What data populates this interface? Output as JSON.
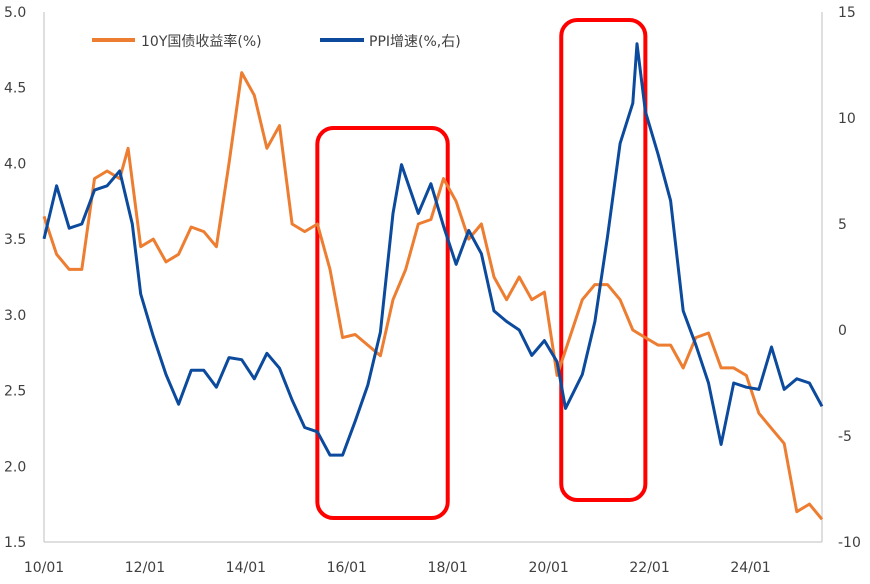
{
  "chart_data": {
    "type": "line",
    "title": "",
    "x_tick_labels": [
      "10/01",
      "12/01",
      "14/01",
      "16/01",
      "18/01",
      "20/01",
      "22/01",
      "24/01"
    ],
    "x_ticks": [
      "2010-01",
      "2012-01",
      "2014-01",
      "2016-01",
      "2018-01",
      "2020-01",
      "2022-01",
      "2024-01"
    ],
    "x_range": [
      "2010-01",
      "2025-06"
    ],
    "y_left": {
      "range": [
        1.5,
        5.0
      ],
      "ticks": [
        "1.5",
        "2.0",
        "2.5",
        "3.0",
        "3.5",
        "4.0",
        "4.5",
        "5.0"
      ]
    },
    "y_right": {
      "range": [
        -10,
        15
      ],
      "ticks": [
        "-10",
        "-5",
        "0",
        "5",
        "10",
        "15"
      ]
    },
    "grid": false,
    "legend_position": "top-left",
    "series": [
      {
        "name": "10Y国债收益率(%)",
        "axis": "left",
        "color": "#ED7D31",
        "x": [
          "2010-01",
          "2010-04",
          "2010-07",
          "2010-10",
          "2011-01",
          "2011-04",
          "2011-07",
          "2011-09",
          "2011-12",
          "2012-03",
          "2012-06",
          "2012-09",
          "2012-12",
          "2013-03",
          "2013-06",
          "2013-09",
          "2013-12",
          "2014-03",
          "2014-06",
          "2014-09",
          "2014-12",
          "2015-03",
          "2015-06",
          "2015-09",
          "2015-12",
          "2016-03",
          "2016-06",
          "2016-09",
          "2016-12",
          "2017-03",
          "2017-06",
          "2017-09",
          "2017-12",
          "2018-03",
          "2018-06",
          "2018-09",
          "2018-12",
          "2019-03",
          "2019-06",
          "2019-09",
          "2019-12",
          "2020-03",
          "2020-06",
          "2020-09",
          "2020-12",
          "2021-03",
          "2021-06",
          "2021-09",
          "2021-12",
          "2022-03",
          "2022-06",
          "2022-09",
          "2022-12",
          "2023-03",
          "2023-06",
          "2023-09",
          "2023-12",
          "2024-03",
          "2024-06",
          "2024-09",
          "2024-12",
          "2025-03",
          "2025-06"
        ],
        "y": [
          3.65,
          3.4,
          3.3,
          3.3,
          3.9,
          3.95,
          3.9,
          4.1,
          3.45,
          3.5,
          3.35,
          3.4,
          3.58,
          3.55,
          3.45,
          4.0,
          4.6,
          4.45,
          4.1,
          4.25,
          3.6,
          3.55,
          3.6,
          3.3,
          2.85,
          2.87,
          2.8,
          2.73,
          3.1,
          3.3,
          3.6,
          3.63,
          3.9,
          3.75,
          3.5,
          3.6,
          3.25,
          3.1,
          3.25,
          3.1,
          3.15,
          2.6,
          2.85,
          3.1,
          3.2,
          3.2,
          3.1,
          2.9,
          2.85,
          2.8,
          2.8,
          2.65,
          2.85,
          2.88,
          2.65,
          2.65,
          2.6,
          2.35,
          2.25,
          2.15,
          1.7,
          1.75,
          1.65
        ]
      },
      {
        "name": "PPI增速(%,右)",
        "axis": "right",
        "color": "#0B4A9C",
        "x": [
          "2010-01",
          "2010-04",
          "2010-07",
          "2010-10",
          "2011-01",
          "2011-04",
          "2011-07",
          "2011-10",
          "2011-12",
          "2012-03",
          "2012-06",
          "2012-09",
          "2012-12",
          "2013-03",
          "2013-06",
          "2013-09",
          "2013-12",
          "2014-03",
          "2014-06",
          "2014-09",
          "2014-12",
          "2015-03",
          "2015-06",
          "2015-09",
          "2015-12",
          "2016-03",
          "2016-06",
          "2016-09",
          "2016-12",
          "2017-02",
          "2017-06",
          "2017-09",
          "2017-12",
          "2018-03",
          "2018-06",
          "2018-09",
          "2018-12",
          "2019-03",
          "2019-06",
          "2019-09",
          "2019-12",
          "2020-03",
          "2020-05",
          "2020-09",
          "2020-12",
          "2021-03",
          "2021-06",
          "2021-09",
          "2021-10",
          "2021-12",
          "2022-03",
          "2022-06",
          "2022-09",
          "2022-12",
          "2023-03",
          "2023-06",
          "2023-09",
          "2023-12",
          "2024-03",
          "2024-06",
          "2024-09",
          "2024-12",
          "2025-03",
          "2025-06"
        ],
        "y": [
          4.3,
          6.8,
          4.8,
          5.0,
          6.6,
          6.8,
          7.5,
          5.0,
          1.7,
          -0.3,
          -2.1,
          -3.5,
          -1.9,
          -1.9,
          -2.7,
          -1.3,
          -1.4,
          -2.3,
          -1.1,
          -1.8,
          -3.3,
          -4.6,
          -4.8,
          -5.9,
          -5.9,
          -4.3,
          -2.6,
          -0.1,
          5.5,
          7.8,
          5.5,
          6.9,
          4.9,
          3.1,
          4.7,
          3.6,
          0.9,
          0.4,
          0.0,
          -1.2,
          -0.5,
          -1.5,
          -3.7,
          -2.1,
          0.4,
          4.4,
          8.8,
          10.7,
          13.5,
          10.3,
          8.3,
          6.1,
          0.9,
          -0.7,
          -2.5,
          -5.4,
          -2.5,
          -2.7,
          -2.8,
          -0.8,
          -2.8,
          -2.3,
          -2.5,
          -3.6
        ]
      }
    ],
    "highlight_periods": [
      {
        "from": "2015-06",
        "to": "2018-01",
        "color": "#FF0000"
      },
      {
        "from": "2020-04",
        "to": "2021-12",
        "color": "#FF0000"
      }
    ]
  }
}
